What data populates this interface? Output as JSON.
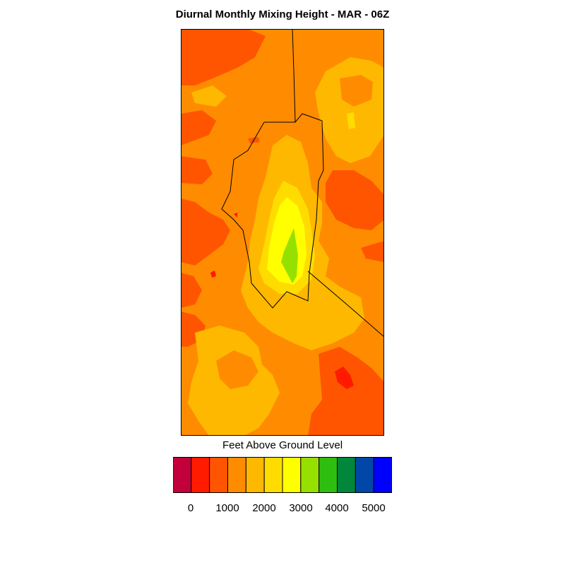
{
  "title": "Diurnal Monthly Mixing Height - MAR - 06Z",
  "legend": {
    "label": "Feet Above Ground Level",
    "colors": [
      "#c2003a",
      "#ff1a00",
      "#ff5500",
      "#ff8c00",
      "#ffb800",
      "#ffdc00",
      "#ffff00",
      "#96e000",
      "#2ebe10",
      "#00873c",
      "#0047a8",
      "#0000ff"
    ],
    "tick_labels": [
      "0",
      "1000",
      "2000",
      "3000",
      "4000",
      "5000"
    ]
  },
  "map": {
    "fill_colors": {
      "base": "#ff8c00",
      "low": "#ff5500",
      "lowest": "#ff1a00",
      "mid": "#ffb800",
      "upper_mid": "#ffdc00",
      "high": "#ffff00",
      "peak": "#96e000",
      "boundary": "#000000"
    }
  }
}
